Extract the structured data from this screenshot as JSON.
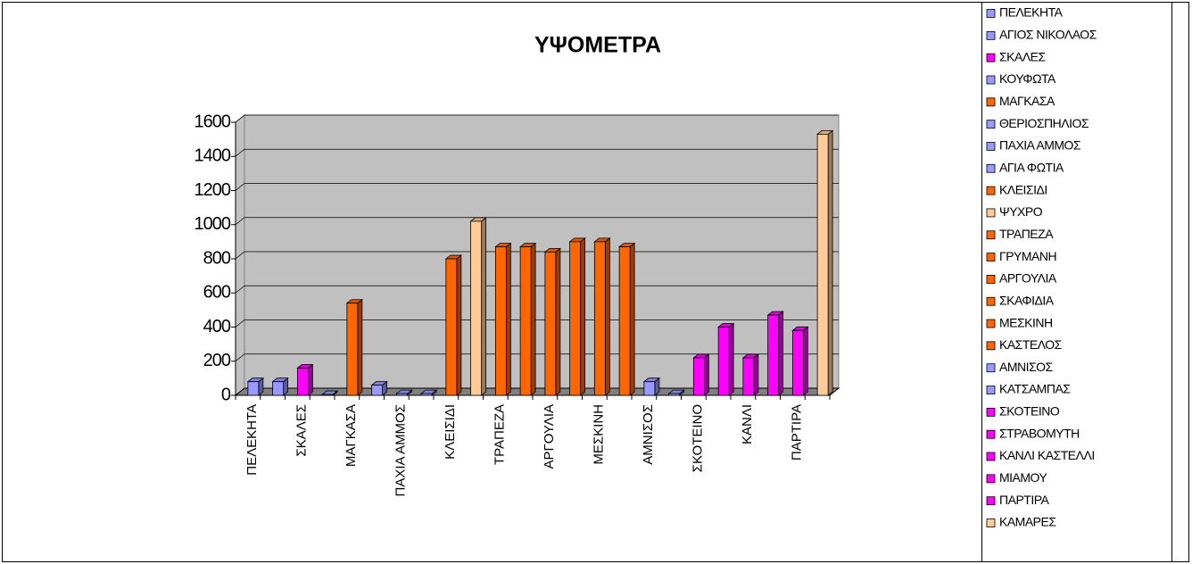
{
  "chart_data": {
    "type": "bar3d",
    "title": "ΥΨΟΜΕΤΡΑ",
    "categories": [
      "ΠΕΛΕΚΗΤΑ",
      null,
      "ΣΚΑΛΕΣ",
      null,
      "ΜΑΓΚΑΣΑ",
      null,
      "ΠΑΧΙΑ ΑΜΜΟΣ",
      null,
      "ΚΛΕΙΣΙΔΙ",
      null,
      "ΤΡΑΠΕΖΑ",
      null,
      "ΑΡΓΟΥΛΙΑ",
      null,
      "ΜΕΣΚΙΝΗ",
      null,
      "ΑΜΝΙΣΟΣ",
      null,
      "ΣΚΟΤΕΙΝΟ",
      null,
      "ΚΑΝΛΙ",
      null,
      "ΠΑΡΤΙΡΑ",
      null
    ],
    "values": [
      80,
      80,
      160,
      5,
      540,
      60,
      10,
      10,
      800,
      1020,
      870,
      870,
      840,
      900,
      900,
      870,
      80,
      10,
      220,
      400,
      220,
      470,
      380,
      1530
    ],
    "colors": [
      "#9999ff",
      "#9999ff",
      "#ff00ff",
      "#9999ff",
      "#ff6600",
      "#9999ff",
      "#9999ff",
      "#9999ff",
      "#ff6600",
      "#ffcc99",
      "#ff6600",
      "#ff6600",
      "#ff6600",
      "#ff6600",
      "#ff6600",
      "#ff6600",
      "#9999ff",
      "#9999ff",
      "#ff00ff",
      "#ff00ff",
      "#ff00ff",
      "#ff00ff",
      "#ff00ff",
      "#ffcc99"
    ],
    "legend": [
      "ΠΕΛΕΚΗΤΑ",
      "ΑΓΙΟΣ ΝΙΚΟΛΑΟΣ",
      "ΣΚΑΛΕΣ",
      "ΚΟΥΦΩΤΑ",
      "ΜΑΓΚΑΣΑ",
      "ΘΕΡΙΟΣΠΗΛΙΟΣ",
      "ΠΑΧΙΑ ΑΜΜΟΣ",
      "ΑΓΙΑ ΦΩΤΙΑ",
      "ΚΛΕΙΣΙΔΙ",
      "ΨΥΧΡΟ",
      "ΤΡΑΠΕΖΑ",
      "ΓΡΥΜΑΝΗ",
      "ΑΡΓΟΥΛΙΑ",
      "ΣΚΑΦΙΔΙΑ",
      "ΜΕΣΚΙΝΗ",
      "ΚΑΣΤΕΛΟΣ",
      "ΑΜΝΙΣΟΣ",
      "ΚΑΤΣΑΜΠΑΣ",
      "ΣΚΟΤΕΙΝΟ",
      "ΣΤΡΑΒΟΜΥΤΗ",
      "ΚΑΝΛΙ ΚΑΣΤΕΛΛΙ",
      "ΜΙΑΜΟΥ",
      "ΠΑΡΤΙΡΑ",
      "ΚΑΜΑΡΕΣ"
    ],
    "ylim": [
      0,
      1600
    ],
    "yticks": [
      0,
      200,
      400,
      600,
      800,
      1000,
      1200,
      1400,
      1600
    ],
    "grid": true
  }
}
